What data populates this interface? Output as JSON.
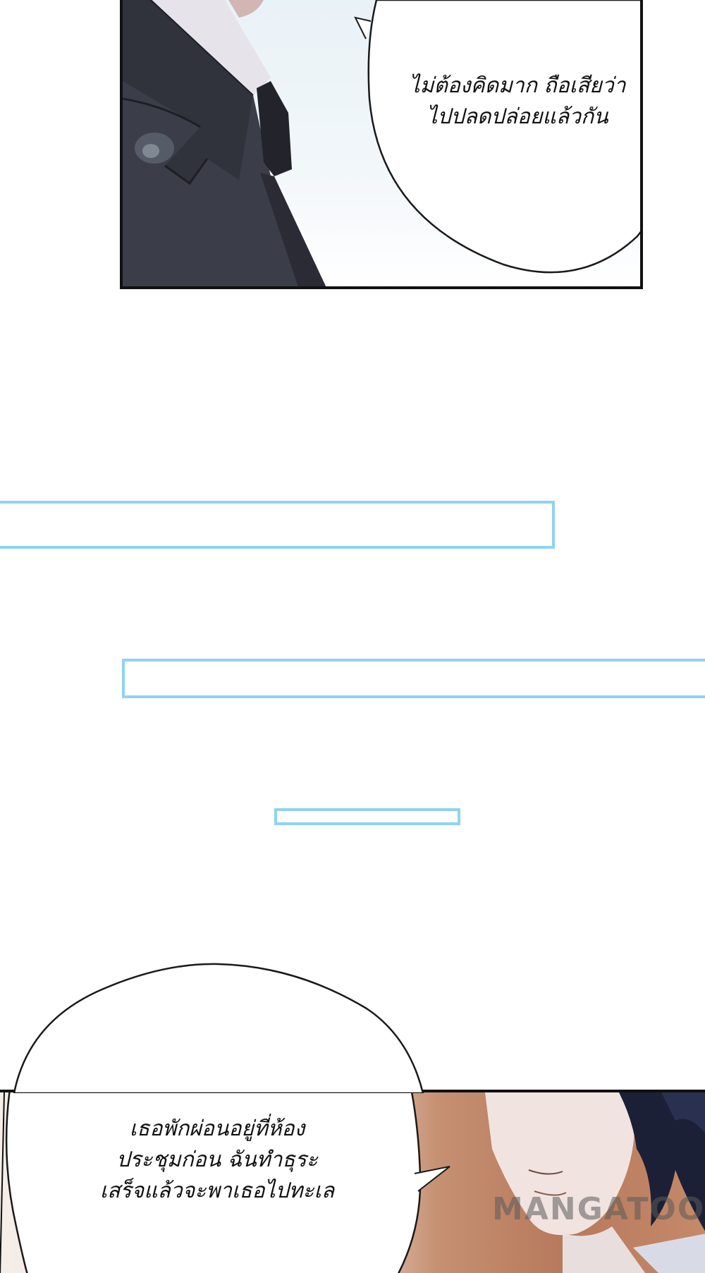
{
  "dialogue": {
    "top_bubble": {
      "line1": "ไม่ต้องคิดมาก ถือเสียว่า",
      "line2": "ไปปลดปล่อยแล้วกัน"
    },
    "bottom_bubble": {
      "line1": "เธอพักผ่อนอยู่ที่ห้อง",
      "line2": "ประชุมก่อน ฉันทำธุระ",
      "line3": "เสร็จแล้วจะพาเธอไปทะเล"
    }
  },
  "watermark": "MANGATOON",
  "colors": {
    "frame_blue": "#8fd3f1",
    "suit": "#3a3c47",
    "shirt": "#e6e4ea",
    "panel_border": "#111111",
    "hair": "#1c2036"
  }
}
